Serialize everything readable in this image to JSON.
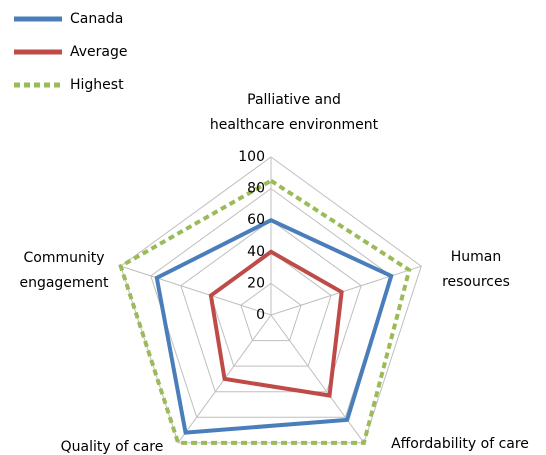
{
  "chart_data": {
    "type": "radar",
    "categories": [
      [
        "Palliative and",
        "healthcare environment"
      ],
      [
        "Human",
        "resources"
      ],
      [
        "Affordability of care"
      ],
      [
        "Quality of care"
      ],
      [
        "Community",
        "engagement"
      ]
    ],
    "series": [
      {
        "name": "Canada",
        "color": "#4a7ebb",
        "dashed": false,
        "values": [
          60,
          80,
          82,
          92,
          76
        ]
      },
      {
        "name": "Average",
        "color": "#be4b48",
        "dashed": false,
        "values": [
          40,
          47,
          63,
          50,
          40
        ]
      },
      {
        "name": "Highest",
        "color": "#9bbb59",
        "dashed": true,
        "values": [
          85,
          92,
          100,
          100,
          100
        ]
      }
    ],
    "rlim": [
      0,
      100
    ],
    "rticks": [
      0,
      20,
      40,
      60,
      80,
      100
    ],
    "grid": true,
    "legend": "top-left"
  }
}
